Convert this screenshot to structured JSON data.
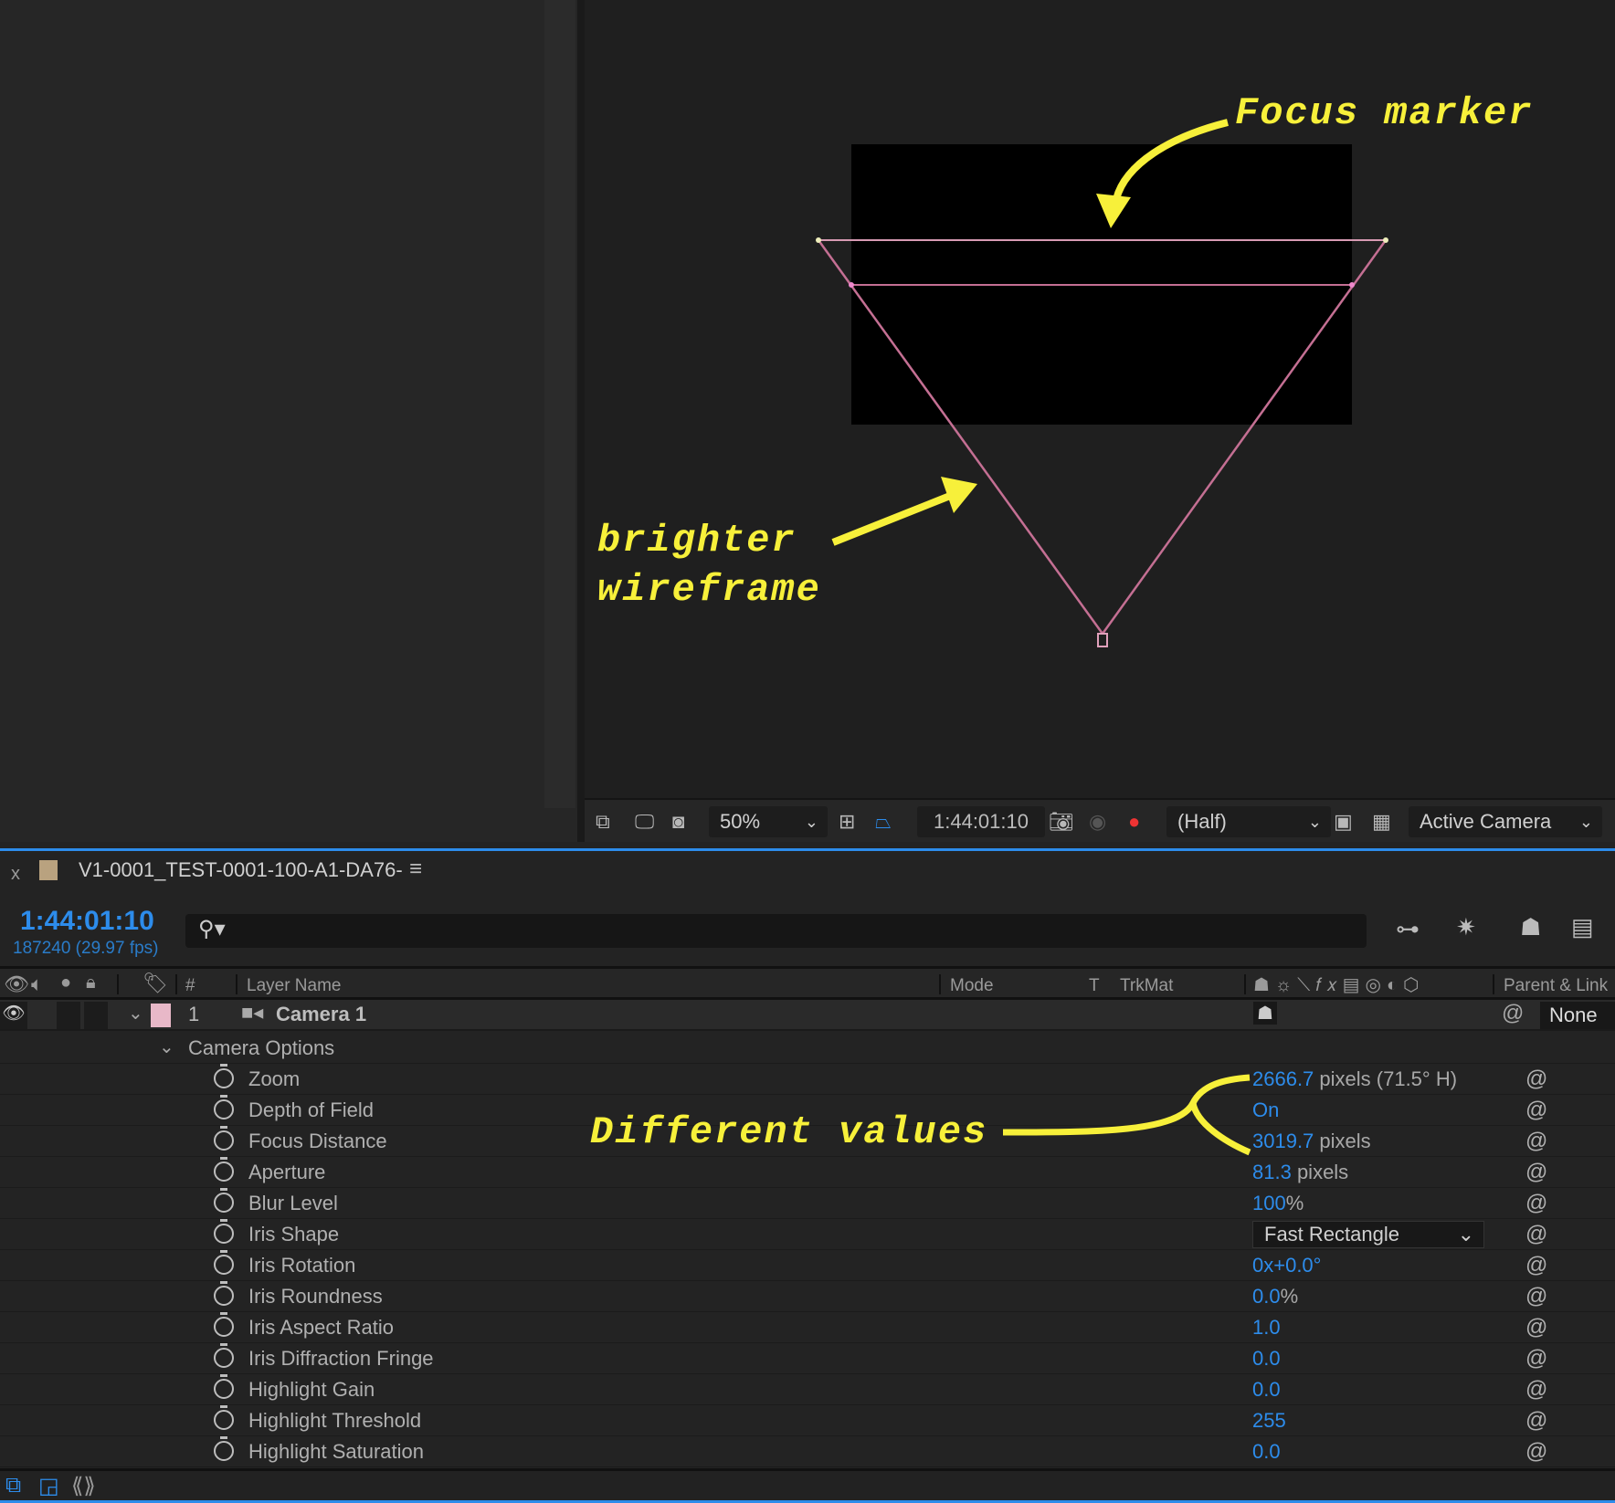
{
  "viewer": {
    "toolbar": {
      "zoom": "50%",
      "timecode": "1:44:01:10",
      "resolution": "(Half)",
      "view": "Active Camera"
    },
    "colors": {
      "wireframe": "#c46f93",
      "accent": "#2d8ceb",
      "annotation": "#f7f03a"
    }
  },
  "timeline": {
    "close": "x",
    "comp_name": "V1-0001_TEST-0001-100-A1-DA76-",
    "menu_icon": "hamburger-icon",
    "current_time": "1:44:01:10",
    "frame_info": "187240 (29.97 fps)",
    "columns": {
      "num": "#",
      "layer_name": "Layer Name",
      "mode": "Mode",
      "t": "T",
      "trkmat": "TrkMat",
      "parent": "Parent & Link"
    },
    "layer": {
      "index": "1",
      "name": "Camera 1",
      "parent": "None",
      "label_color": "#e8b8c8"
    },
    "group": "Camera Options",
    "properties": [
      {
        "name": "Zoom",
        "value": "2666.7",
        "unit": " pixels (71.5° H)"
      },
      {
        "name": "Depth of Field",
        "value": "On",
        "unit": ""
      },
      {
        "name": "Focus Distance",
        "value": "3019.7",
        "unit": " pixels"
      },
      {
        "name": "Aperture",
        "value": "81.3",
        "unit": " pixels"
      },
      {
        "name": "Blur Level",
        "value": "100",
        "unit": "%"
      },
      {
        "name": "Iris Shape",
        "value": "Fast Rectangle",
        "unit": "",
        "dropdown": true
      },
      {
        "name": "Iris Rotation",
        "value": "0x+0.0°",
        "unit": ""
      },
      {
        "name": "Iris Roundness",
        "value": "0.0",
        "unit": "%"
      },
      {
        "name": "Iris Aspect Ratio",
        "value": "1.0",
        "unit": ""
      },
      {
        "name": "Iris Diffraction Fringe",
        "value": "0.0",
        "unit": ""
      },
      {
        "name": "Highlight Gain",
        "value": "0.0",
        "unit": ""
      },
      {
        "name": "Highlight Threshold",
        "value": "255",
        "unit": ""
      },
      {
        "name": "Highlight Saturation",
        "value": "0.0",
        "unit": ""
      }
    ]
  },
  "annotations": {
    "focus": "Focus marker",
    "bright1": "brighter",
    "bright2": "wireframe",
    "values": "Different values"
  }
}
